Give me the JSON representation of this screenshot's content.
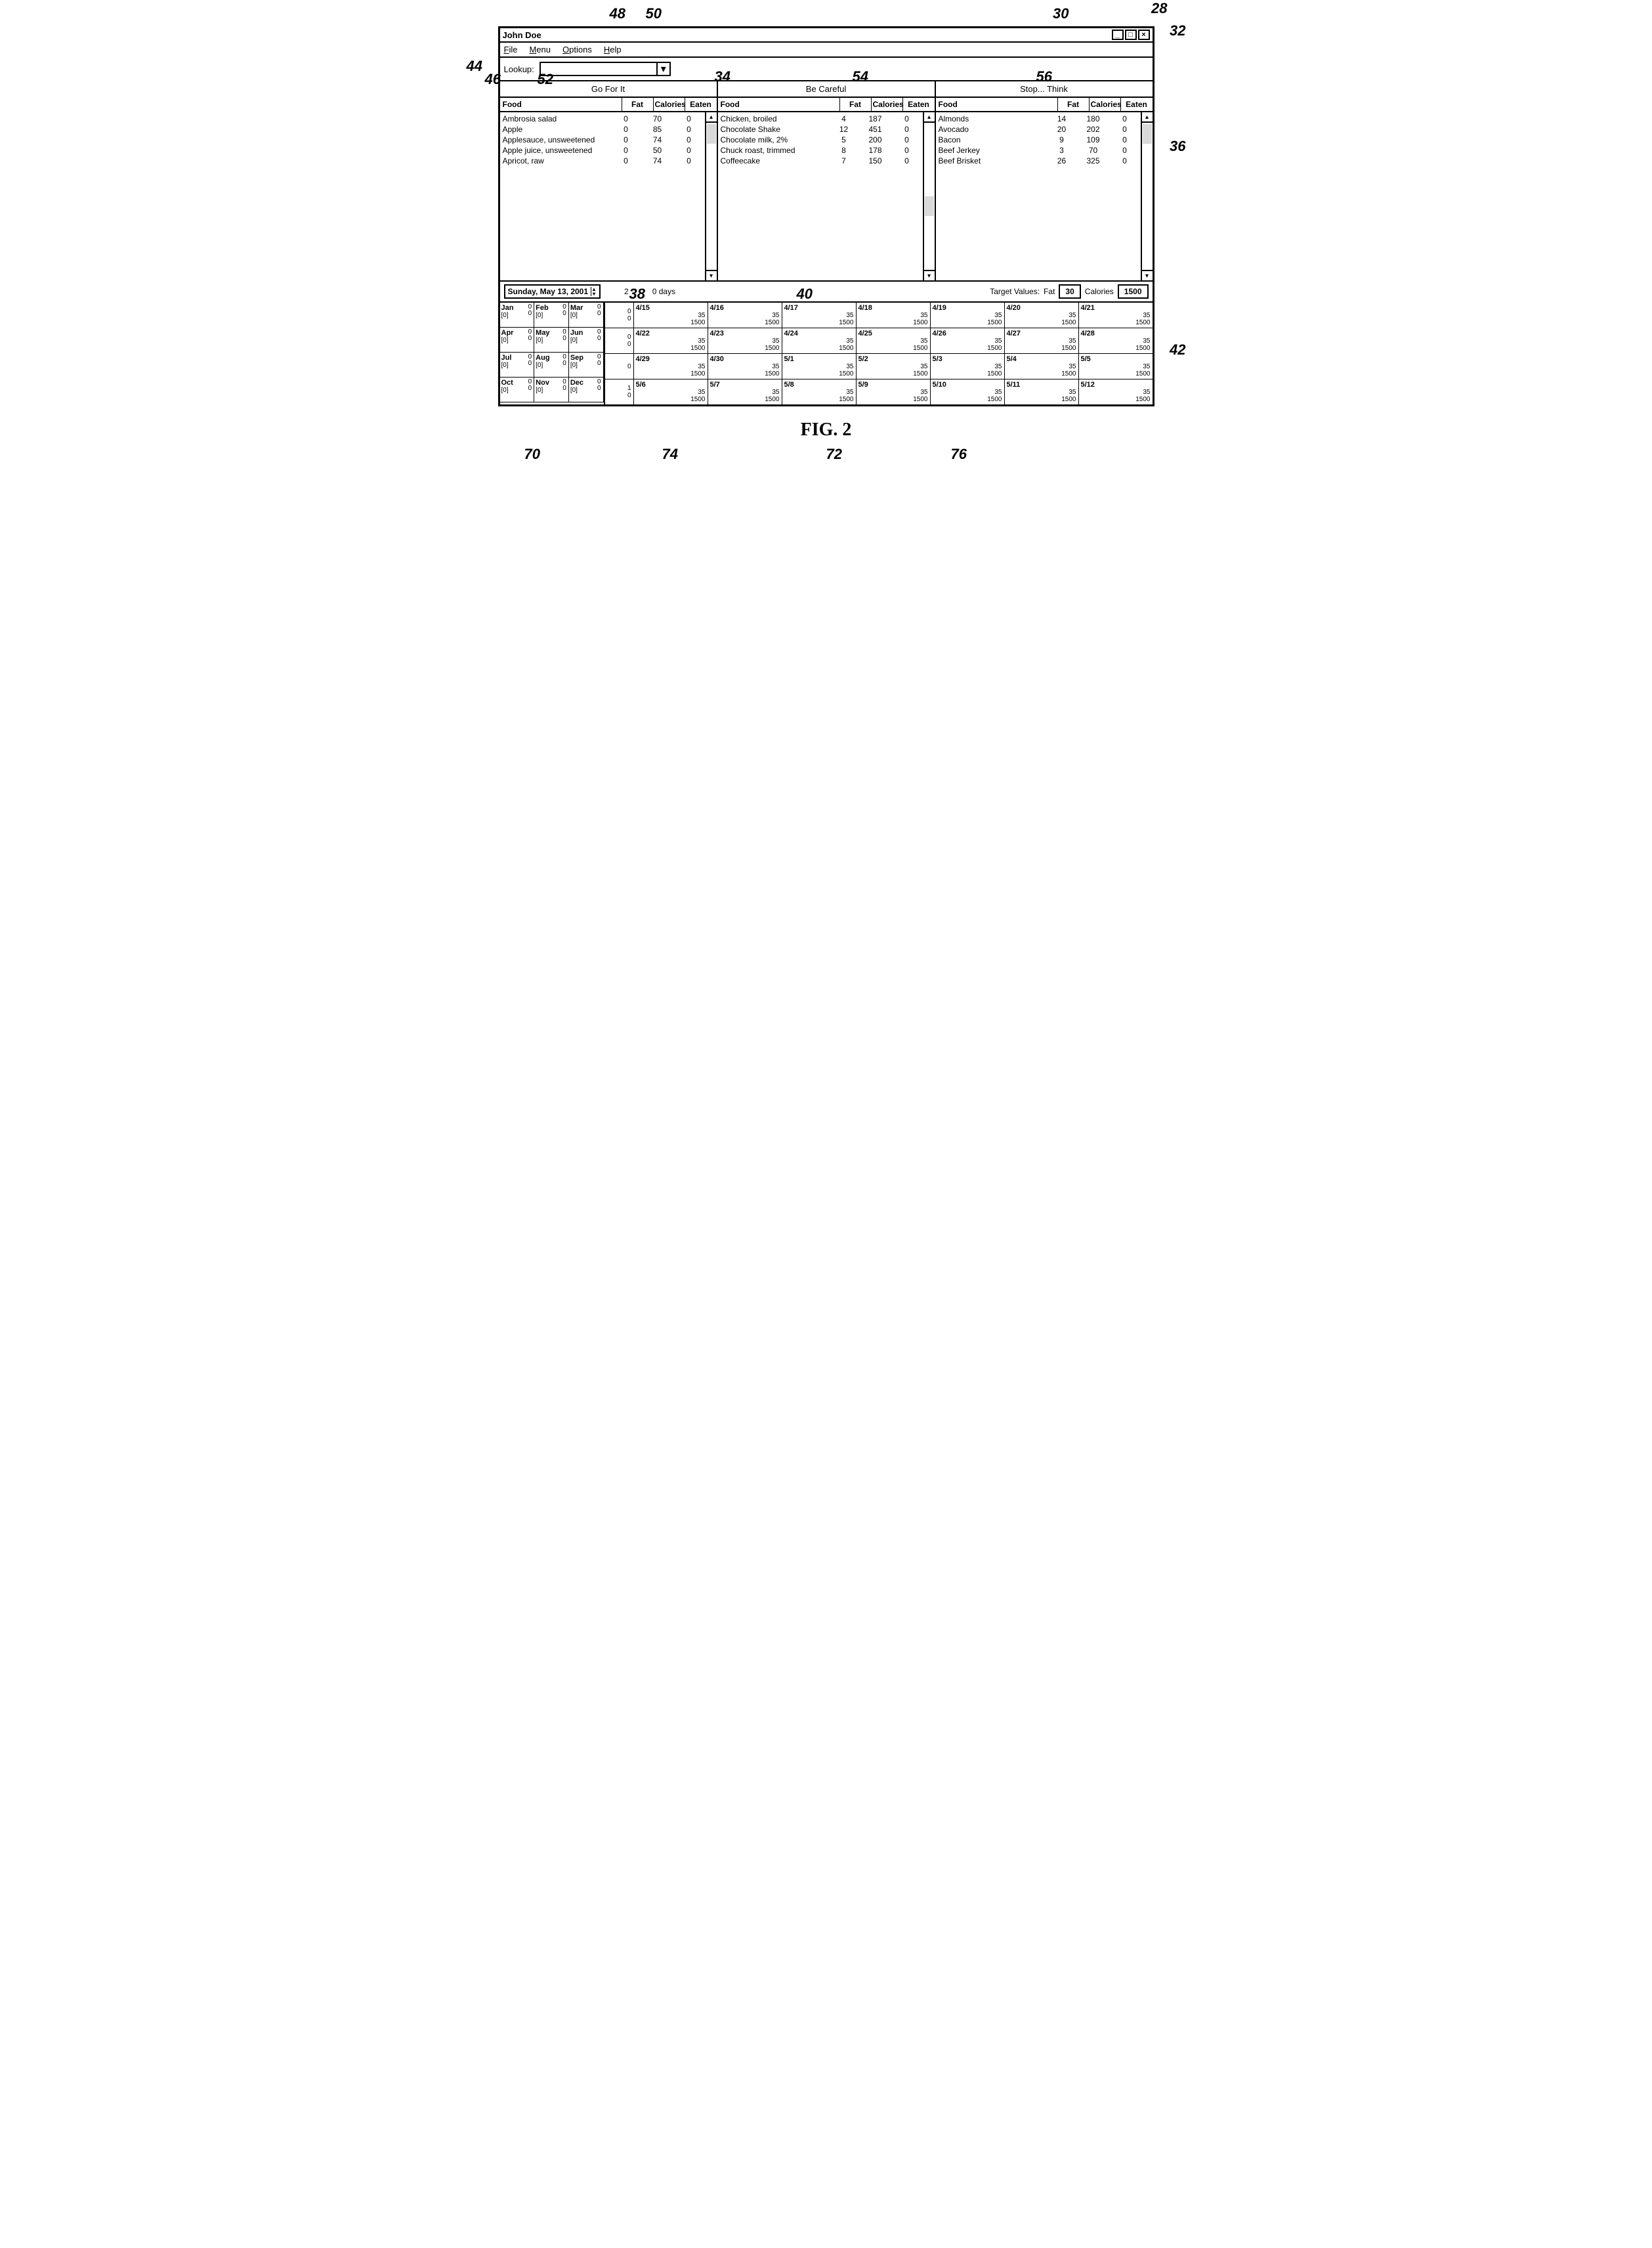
{
  "figure_label": "FIG. 2",
  "window": {
    "title": "John Doe",
    "menu": [
      "File",
      "Menu",
      "Options",
      "Help"
    ],
    "lookup_label": "Lookup:"
  },
  "categories": {
    "col1": "Go For It",
    "col2": "Be Careful",
    "col3": "Stop... Think"
  },
  "food_headers": {
    "food": "Food",
    "fat": "Fat",
    "calories": "Calories",
    "eaten": "Eaten"
  },
  "panel1": [
    {
      "food": "Ambrosia salad",
      "fat": 0,
      "cal": 70,
      "eaten": 0
    },
    {
      "food": "Apple",
      "fat": 0,
      "cal": 85,
      "eaten": 0
    },
    {
      "food": "Applesauce, unsweetened",
      "fat": 0,
      "cal": 74,
      "eaten": 0
    },
    {
      "food": "Apple juice, unsweetened",
      "fat": 0,
      "cal": 50,
      "eaten": 0
    },
    {
      "food": "Apricot, raw",
      "fat": 0,
      "cal": 74,
      "eaten": 0
    }
  ],
  "panel2": [
    {
      "food": "Chicken, broiled",
      "fat": 4,
      "cal": 187,
      "eaten": 0
    },
    {
      "food": "Chocolate Shake",
      "fat": 12,
      "cal": 451,
      "eaten": 0
    },
    {
      "food": "Chocolate milk, 2%",
      "fat": 5,
      "cal": 200,
      "eaten": 0
    },
    {
      "food": "Chuck roast, trimmed",
      "fat": 8,
      "cal": 178,
      "eaten": 0
    },
    {
      "food": "Coffeecake",
      "fat": 7,
      "cal": 150,
      "eaten": 0
    }
  ],
  "panel3": [
    {
      "food": "Almonds",
      "fat": 14,
      "cal": 180,
      "eaten": 0
    },
    {
      "food": "Avocado",
      "fat": 20,
      "cal": 202,
      "eaten": 0
    },
    {
      "food": "Bacon",
      "fat": 9,
      "cal": 109,
      "eaten": 0
    },
    {
      "food": "Beef Jerkey",
      "fat": 3,
      "cal": 70,
      "eaten": 0
    },
    {
      "food": "Beef Brisket",
      "fat": 26,
      "cal": 325,
      "eaten": 0
    }
  ],
  "calendar": {
    "date_display": "Sunday, May 13, 2001",
    "summary_count": "2",
    "summary_days": "0 days",
    "target_label": "Target Values:",
    "target_fat_label": "Fat",
    "target_fat": "30",
    "target_cal_label": "Calories",
    "target_cal": "1500",
    "months": [
      {
        "n": "Jan",
        "c": "[0]"
      },
      {
        "n": "Feb",
        "c": "[0]"
      },
      {
        "n": "Mar",
        "c": "[0]"
      },
      {
        "n": "Apr",
        "c": "[0]"
      },
      {
        "n": "May",
        "c": "[0]"
      },
      {
        "n": "Jun",
        "c": "[0]"
      },
      {
        "n": "Jul",
        "c": "[0]"
      },
      {
        "n": "Aug",
        "c": "[0]"
      },
      {
        "n": "Sep",
        "c": "[0]"
      },
      {
        "n": "Oct",
        "c": "[0]"
      },
      {
        "n": "Nov",
        "c": "[0]"
      },
      {
        "n": "Dec",
        "c": "[0]"
      }
    ],
    "row_heads": [
      {
        "a": "0",
        "b": "0"
      },
      {
        "a": "0",
        "b": "0"
      },
      {
        "a": "0",
        "b": ""
      },
      {
        "a": "1",
        "b": "0"
      }
    ],
    "rows": [
      [
        "4/15",
        "4/16",
        "4/17",
        "4/18",
        "4/19",
        "4/20",
        "4/21"
      ],
      [
        "4/22",
        "4/23",
        "4/24",
        "4/25",
        "4/26",
        "4/27",
        "4/28"
      ],
      [
        "4/29",
        "4/30",
        "5/1",
        "5/2",
        "5/3",
        "5/4",
        "5/5"
      ],
      [
        "5/6",
        "5/7",
        "5/8",
        "5/9",
        "5/10",
        "5/11",
        "5/12"
      ]
    ],
    "cell_fat": "35",
    "cell_cal": "1500"
  },
  "refs": {
    "28": "28",
    "30": "30",
    "32": "32",
    "34": "34",
    "36": "36",
    "38": "38",
    "40": "40",
    "42": "42",
    "44": "44",
    "46": "46",
    "48": "48",
    "50": "50",
    "52": "52",
    "54": "54",
    "56": "56",
    "70": "70",
    "72": "72",
    "74": "74",
    "76": "76"
  }
}
